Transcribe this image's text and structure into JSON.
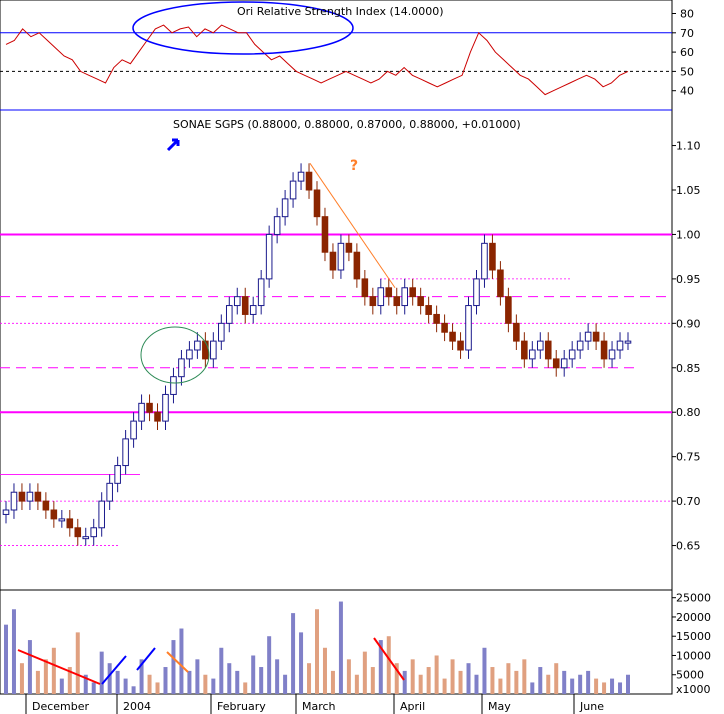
{
  "colors": {
    "up": "#1a1a8c",
    "down": "#8b2500",
    "magenta": "#ff00ff",
    "rsi": "#cc0000",
    "orange": "#ff7f2a",
    "blue_line": "#0000ff",
    "teal": "#2e8b57",
    "vol_up": "#8080c8",
    "vol_down": "#e0a080"
  },
  "chart_data": [
    {
      "type": "line",
      "title": "Ori Relative Strength Index (14.0000)",
      "ylim": [
        30,
        87
      ],
      "yticks": [
        40,
        50,
        60,
        70,
        80
      ],
      "hlines": [
        70,
        50,
        30
      ],
      "series": [
        {
          "values": [
            64,
            66,
            72,
            68,
            70,
            66,
            62,
            58,
            56,
            50,
            48,
            46,
            44,
            52,
            56,
            54,
            60,
            66,
            72,
            74,
            70,
            72,
            73,
            68,
            72,
            70,
            74,
            72,
            70,
            70,
            64,
            60,
            56,
            58,
            54,
            50,
            48,
            46,
            44,
            46,
            48,
            50,
            48,
            46,
            44,
            46,
            50,
            48,
            52,
            48,
            46,
            44,
            42,
            44,
            46,
            48,
            60,
            70,
            66,
            60,
            56,
            52,
            48,
            46,
            42,
            38,
            40,
            42,
            44,
            46,
            48,
            46,
            42,
            44,
            48,
            50
          ]
        }
      ]
    },
    {
      "type": "bar",
      "title": "SONAE SGPS (0.88000, 0.88000, 0.87000, 0.88000, +0.01000)",
      "ylim": [
        0.6,
        1.14
      ],
      "yticks": [
        "0.65",
        "0.70",
        "0.75",
        "0.80",
        "0.85",
        "0.90",
        "0.95",
        "1.00",
        "1.05",
        "1.10"
      ],
      "xlabels": [
        "December",
        "2004",
        "February",
        "March",
        "April",
        "May",
        "June"
      ],
      "annotations": [
        "?"
      ],
      "close": [
        0.69,
        0.71,
        0.7,
        0.71,
        0.7,
        0.69,
        0.68,
        0.68,
        0.67,
        0.66,
        0.66,
        0.67,
        0.7,
        0.72,
        0.74,
        0.77,
        0.79,
        0.81,
        0.8,
        0.79,
        0.82,
        0.84,
        0.86,
        0.87,
        0.88,
        0.86,
        0.88,
        0.9,
        0.92,
        0.93,
        0.91,
        0.92,
        0.95,
        1.0,
        1.02,
        1.04,
        1.06,
        1.07,
        1.05,
        1.02,
        0.98,
        0.96,
        0.99,
        0.98,
        0.95,
        0.93,
        0.92,
        0.94,
        0.93,
        0.92,
        0.94,
        0.93,
        0.92,
        0.91,
        0.9,
        0.89,
        0.88,
        0.87,
        0.92,
        0.95,
        0.99,
        0.96,
        0.93,
        0.9,
        0.88,
        0.86,
        0.87,
        0.88,
        0.86,
        0.85,
        0.86,
        0.87,
        0.88,
        0.89,
        0.88,
        0.86,
        0.87,
        0.88,
        0.88
      ]
    },
    {
      "type": "bar",
      "ylim": [
        0,
        27000
      ],
      "yticks": [
        "5000",
        "10000",
        "15000",
        "20000",
        "25000"
      ],
      "unit": "x1000",
      "values": [
        18000,
        22000,
        8000,
        14000,
        6000,
        9000,
        12000,
        4000,
        7000,
        16000,
        5000,
        3000,
        11000,
        8000,
        6000,
        4000,
        2000,
        9000,
        5000,
        3000,
        7000,
        14000,
        17000,
        6000,
        9000,
        5000,
        4000,
        12000,
        8000,
        6000,
        3000,
        10000,
        7000,
        15000,
        9000,
        5000,
        21000,
        16000,
        8000,
        22000,
        12000,
        6000,
        24000,
        9000,
        5000,
        11000,
        7000,
        14000,
        15000,
        8000,
        6000,
        9000,
        5000,
        7000,
        10000,
        4000,
        9000,
        6000,
        8000,
        5000,
        12000,
        7000,
        4000,
        8000,
        6000,
        9000,
        3000,
        7000,
        5000,
        8000,
        6000,
        4000,
        5000,
        6000,
        4000,
        3000,
        4000,
        3000,
        5000
      ]
    }
  ]
}
